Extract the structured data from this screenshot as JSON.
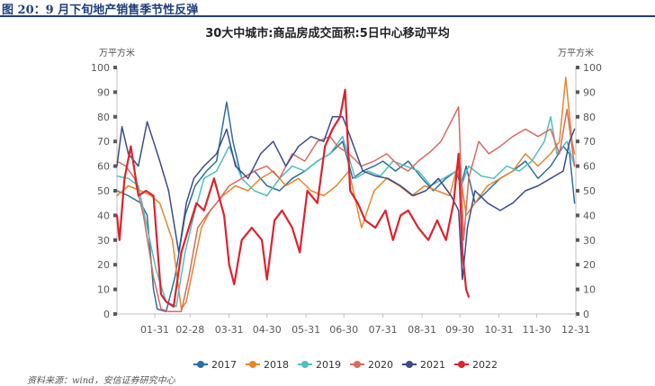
{
  "figure": {
    "title": "图 20：9 月下旬地产销售季节性反弹",
    "source": "资料来源：wind，安信证券研究中心"
  },
  "chart_data": {
    "type": "line",
    "title": "30大中城市:商品房成交面积:5日中心移动平均",
    "ylabel_left": "万平方米",
    "ylabel_right": "万平方米",
    "ylim": [
      0,
      100
    ],
    "yticks": [
      0,
      10,
      20,
      30,
      40,
      50,
      60,
      70,
      80,
      90,
      100
    ],
    "x_tick_labels": [
      "01-31",
      "02-28",
      "03-31",
      "04-30",
      "05-31",
      "06-30",
      "07-31",
      "08-31",
      "09-30",
      "10-31",
      "11-30",
      "12-31"
    ],
    "x_tick_days": [
      31,
      59,
      90,
      120,
      151,
      181,
      212,
      243,
      273,
      304,
      334,
      365
    ],
    "x_range_days": [
      1,
      365
    ],
    "grid": false,
    "legend_position": "bottom",
    "series": [
      {
        "name": "2017",
        "color": "#2e6e9e",
        "points": [
          [
            1,
            50
          ],
          [
            10,
            48
          ],
          [
            20,
            45
          ],
          [
            25,
            40
          ],
          [
            30,
            10
          ],
          [
            33,
            2
          ],
          [
            40,
            1
          ],
          [
            47,
            15
          ],
          [
            55,
            40
          ],
          [
            63,
            52
          ],
          [
            72,
            58
          ],
          [
            80,
            62
          ],
          [
            88,
            86
          ],
          [
            93,
            70
          ],
          [
            100,
            55
          ],
          [
            110,
            58
          ],
          [
            120,
            52
          ],
          [
            130,
            50
          ],
          [
            140,
            55
          ],
          [
            150,
            58
          ],
          [
            160,
            62
          ],
          [
            170,
            65
          ],
          [
            180,
            70
          ],
          [
            188,
            55
          ],
          [
            196,
            58
          ],
          [
            205,
            60
          ],
          [
            212,
            62
          ],
          [
            222,
            58
          ],
          [
            232,
            62
          ],
          [
            243,
            55
          ],
          [
            252,
            50
          ],
          [
            262,
            55
          ],
          [
            270,
            58
          ],
          [
            274,
            52
          ],
          [
            278,
            60
          ],
          [
            285,
            45
          ],
          [
            295,
            50
          ],
          [
            305,
            55
          ],
          [
            315,
            58
          ],
          [
            325,
            62
          ],
          [
            335,
            55
          ],
          [
            345,
            60
          ],
          [
            355,
            68
          ],
          [
            360,
            65
          ],
          [
            364,
            45
          ]
        ]
      },
      {
        "name": "2018",
        "color": "#e8862a",
        "points": [
          [
            1,
            48
          ],
          [
            10,
            52
          ],
          [
            20,
            50
          ],
          [
            28,
            48
          ],
          [
            35,
            45
          ],
          [
            45,
            30
          ],
          [
            52,
            2
          ],
          [
            56,
            5
          ],
          [
            62,
            20
          ],
          [
            68,
            35
          ],
          [
            75,
            42
          ],
          [
            85,
            48
          ],
          [
            95,
            52
          ],
          [
            105,
            50
          ],
          [
            115,
            55
          ],
          [
            125,
            58
          ],
          [
            135,
            52
          ],
          [
            145,
            55
          ],
          [
            155,
            50
          ],
          [
            165,
            48
          ],
          [
            175,
            52
          ],
          [
            185,
            58
          ],
          [
            195,
            35
          ],
          [
            205,
            50
          ],
          [
            215,
            55
          ],
          [
            225,
            52
          ],
          [
            235,
            48
          ],
          [
            245,
            52
          ],
          [
            255,
            50
          ],
          [
            265,
            48
          ],
          [
            272,
            62
          ],
          [
            278,
            40
          ],
          [
            285,
            45
          ],
          [
            295,
            52
          ],
          [
            305,
            55
          ],
          [
            315,
            58
          ],
          [
            325,
            65
          ],
          [
            335,
            60
          ],
          [
            345,
            65
          ],
          [
            352,
            70
          ],
          [
            357,
            96
          ],
          [
            362,
            70
          ],
          [
            364,
            65
          ]
        ]
      },
      {
        "name": "2019",
        "color": "#4fbfbf",
        "points": [
          [
            1,
            56
          ],
          [
            10,
            55
          ],
          [
            18,
            52
          ],
          [
            25,
            35
          ],
          [
            32,
            18
          ],
          [
            40,
            5
          ],
          [
            48,
            3
          ],
          [
            55,
            25
          ],
          [
            62,
            40
          ],
          [
            70,
            55
          ],
          [
            80,
            58
          ],
          [
            90,
            68
          ],
          [
            100,
            55
          ],
          [
            110,
            50
          ],
          [
            120,
            48
          ],
          [
            130,
            55
          ],
          [
            140,
            60
          ],
          [
            150,
            58
          ],
          [
            160,
            62
          ],
          [
            170,
            65
          ],
          [
            180,
            72
          ],
          [
            190,
            55
          ],
          [
            200,
            58
          ],
          [
            210,
            56
          ],
          [
            220,
            62
          ],
          [
            230,
            60
          ],
          [
            240,
            58
          ],
          [
            250,
            52
          ],
          [
            260,
            55
          ],
          [
            270,
            58
          ],
          [
            275,
            53
          ],
          [
            280,
            60
          ],
          [
            290,
            56
          ],
          [
            300,
            55
          ],
          [
            310,
            60
          ],
          [
            320,
            58
          ],
          [
            330,
            62
          ],
          [
            340,
            70
          ],
          [
            345,
            80
          ],
          [
            350,
            65
          ],
          [
            358,
            70
          ],
          [
            364,
            60
          ]
        ]
      },
      {
        "name": "2020",
        "color": "#d96a5e",
        "points": [
          [
            1,
            62
          ],
          [
            8,
            60
          ],
          [
            15,
            55
          ],
          [
            22,
            40
          ],
          [
            30,
            15
          ],
          [
            36,
            2
          ],
          [
            42,
            1
          ],
          [
            52,
            1
          ],
          [
            58,
            15
          ],
          [
            65,
            35
          ],
          [
            72,
            40
          ],
          [
            80,
            45
          ],
          [
            90,
            52
          ],
          [
            100,
            55
          ],
          [
            110,
            58
          ],
          [
            120,
            60
          ],
          [
            130,
            55
          ],
          [
            140,
            65
          ],
          [
            150,
            62
          ],
          [
            160,
            70
          ],
          [
            170,
            72
          ],
          [
            176,
            68
          ],
          [
            185,
            65
          ],
          [
            195,
            60
          ],
          [
            205,
            62
          ],
          [
            215,
            65
          ],
          [
            225,
            60
          ],
          [
            232,
            58
          ],
          [
            240,
            62
          ],
          [
            250,
            66
          ],
          [
            258,
            70
          ],
          [
            266,
            78
          ],
          [
            272,
            84
          ],
          [
            276,
            30
          ],
          [
            280,
            55
          ],
          [
            288,
            70
          ],
          [
            296,
            65
          ],
          [
            305,
            68
          ],
          [
            315,
            72
          ],
          [
            325,
            75
          ],
          [
            335,
            72
          ],
          [
            345,
            75
          ],
          [
            352,
            65
          ],
          [
            358,
            83
          ],
          [
            364,
            60
          ]
        ]
      },
      {
        "name": "2021",
        "color": "#3a4c8c",
        "points": [
          [
            1,
            60
          ],
          [
            5,
            76
          ],
          [
            10,
            65
          ],
          [
            18,
            60
          ],
          [
            25,
            78
          ],
          [
            30,
            70
          ],
          [
            35,
            62
          ],
          [
            42,
            50
          ],
          [
            50,
            25
          ],
          [
            56,
            45
          ],
          [
            62,
            55
          ],
          [
            70,
            60
          ],
          [
            80,
            65
          ],
          [
            88,
            75
          ],
          [
            95,
            60
          ],
          [
            105,
            55
          ],
          [
            115,
            65
          ],
          [
            125,
            70
          ],
          [
            135,
            60
          ],
          [
            145,
            68
          ],
          [
            155,
            72
          ],
          [
            165,
            70
          ],
          [
            172,
            80
          ],
          [
            180,
            80
          ],
          [
            186,
            72
          ],
          [
            196,
            58
          ],
          [
            206,
            56
          ],
          [
            216,
            55
          ],
          [
            226,
            52
          ],
          [
            236,
            48
          ],
          [
            246,
            50
          ],
          [
            256,
            55
          ],
          [
            266,
            48
          ],
          [
            272,
            42
          ],
          [
            275,
            14
          ],
          [
            279,
            35
          ],
          [
            285,
            50
          ],
          [
            295,
            45
          ],
          [
            305,
            42
          ],
          [
            315,
            45
          ],
          [
            325,
            50
          ],
          [
            335,
            52
          ],
          [
            345,
            55
          ],
          [
            355,
            58
          ],
          [
            360,
            70
          ],
          [
            364,
            75
          ]
        ]
      },
      {
        "name": "2022",
        "color": "#e0212c",
        "points": [
          [
            1,
            40
          ],
          [
            3,
            30
          ],
          [
            7,
            55
          ],
          [
            12,
            68
          ],
          [
            18,
            48
          ],
          [
            24,
            50
          ],
          [
            30,
            48
          ],
          [
            36,
            8
          ],
          [
            40,
            5
          ],
          [
            46,
            3
          ],
          [
            52,
            25
          ],
          [
            58,
            35
          ],
          [
            64,
            45
          ],
          [
            70,
            42
          ],
          [
            78,
            55
          ],
          [
            86,
            40
          ],
          [
            90,
            20
          ],
          [
            94,
            12
          ],
          [
            100,
            30
          ],
          [
            108,
            35
          ],
          [
            116,
            30
          ],
          [
            120,
            14
          ],
          [
            126,
            38
          ],
          [
            132,
            42
          ],
          [
            140,
            35
          ],
          [
            146,
            25
          ],
          [
            152,
            50
          ],
          [
            160,
            45
          ],
          [
            166,
            68
          ],
          [
            172,
            75
          ],
          [
            178,
            80
          ],
          [
            182,
            91
          ],
          [
            186,
            50
          ],
          [
            192,
            45
          ],
          [
            198,
            38
          ],
          [
            206,
            35
          ],
          [
            214,
            42
          ],
          [
            220,
            30
          ],
          [
            226,
            40
          ],
          [
            232,
            42
          ],
          [
            240,
            35
          ],
          [
            248,
            30
          ],
          [
            255,
            38
          ],
          [
            262,
            30
          ],
          [
            268,
            45
          ],
          [
            272,
            65
          ],
          [
            275,
            25
          ],
          [
            278,
            10
          ],
          [
            280,
            7
          ]
        ]
      }
    ]
  }
}
